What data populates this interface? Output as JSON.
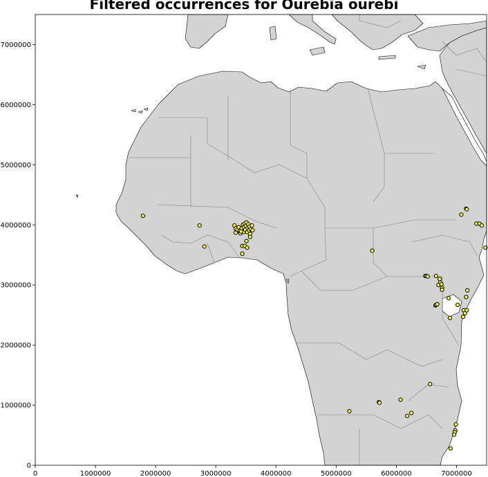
{
  "title": "Filtered occurrences for Ourebia ourebi",
  "colors": {
    "land": "#d3d3d3",
    "sea": "#ffffff",
    "border": "#808080",
    "coast": "#000000",
    "point_fill": "#ffff40",
    "point_edge": "#000000"
  },
  "chart_data": {
    "type": "scatter",
    "title": "Filtered occurrences for Ourebia ourebi",
    "xlabel": "",
    "ylabel": "",
    "xlim": [
      0,
      7500000
    ],
    "ylim": [
      0,
      7500000
    ],
    "x_ticks": [
      "0",
      "1000000",
      "2000000",
      "3000000",
      "4000000",
      "5000000",
      "6000000",
      "7000000"
    ],
    "y_ticks": [
      "0",
      "1000000",
      "2000000",
      "3000000",
      "4000000",
      "5000000",
      "6000000",
      "7000000"
    ],
    "grid": false,
    "points": [
      {
        "x": 1790000,
        "y": 4150000
      },
      {
        "x": 2730000,
        "y": 3990000
      },
      {
        "x": 2810000,
        "y": 3640000
      },
      {
        "x": 3310000,
        "y": 3990000
      },
      {
        "x": 3330000,
        "y": 3940000
      },
      {
        "x": 3340000,
        "y": 3880000
      },
      {
        "x": 3360000,
        "y": 3920000
      },
      {
        "x": 3380000,
        "y": 3960000
      },
      {
        "x": 3400000,
        "y": 3900000
      },
      {
        "x": 3410000,
        "y": 3860000
      },
      {
        "x": 3430000,
        "y": 3940000
      },
      {
        "x": 3450000,
        "y": 4000000
      },
      {
        "x": 3460000,
        "y": 3880000
      },
      {
        "x": 3470000,
        "y": 3960000
      },
      {
        "x": 3480000,
        "y": 4020000
      },
      {
        "x": 3490000,
        "y": 3920000
      },
      {
        "x": 3500000,
        "y": 3980000
      },
      {
        "x": 3510000,
        "y": 4040000
      },
      {
        "x": 3520000,
        "y": 3880000
      },
      {
        "x": 3530000,
        "y": 3950000
      },
      {
        "x": 3540000,
        "y": 4010000
      },
      {
        "x": 3550000,
        "y": 3910000
      },
      {
        "x": 3560000,
        "y": 3970000
      },
      {
        "x": 3570000,
        "y": 3850000
      },
      {
        "x": 3580000,
        "y": 3930000
      },
      {
        "x": 3600000,
        "y": 3990000
      },
      {
        "x": 3610000,
        "y": 3910000
      },
      {
        "x": 3570000,
        "y": 3800000
      },
      {
        "x": 3510000,
        "y": 3730000
      },
      {
        "x": 3440000,
        "y": 3650000
      },
      {
        "x": 3480000,
        "y": 3650000
      },
      {
        "x": 3520000,
        "y": 3620000
      },
      {
        "x": 3440000,
        "y": 3520000
      },
      {
        "x": 3330000,
        "y": 3870000
      },
      {
        "x": 3420000,
        "y": 3890000
      },
      {
        "x": 5600000,
        "y": 3570000
      },
      {
        "x": 6480000,
        "y": 3150000
      },
      {
        "x": 6500000,
        "y": 3150000
      },
      {
        "x": 6520000,
        "y": 3140000
      },
      {
        "x": 6660000,
        "y": 3150000
      },
      {
        "x": 6720000,
        "y": 3100000
      },
      {
        "x": 6730000,
        "y": 3040000
      },
      {
        "x": 6700000,
        "y": 3000000
      },
      {
        "x": 6750000,
        "y": 3010000
      },
      {
        "x": 6760000,
        "y": 2950000
      },
      {
        "x": 6760000,
        "y": 2920000
      },
      {
        "x": 6870000,
        "y": 2780000
      },
      {
        "x": 6650000,
        "y": 2660000
      },
      {
        "x": 6660000,
        "y": 2670000
      },
      {
        "x": 6680000,
        "y": 2680000
      },
      {
        "x": 6890000,
        "y": 2450000
      },
      {
        "x": 7020000,
        "y": 2670000
      },
      {
        "x": 7120000,
        "y": 2580000
      },
      {
        "x": 7140000,
        "y": 2530000
      },
      {
        "x": 7170000,
        "y": 2580000
      },
      {
        "x": 7110000,
        "y": 2470000
      },
      {
        "x": 7160000,
        "y": 2800000
      },
      {
        "x": 7180000,
        "y": 2910000
      },
      {
        "x": 7160000,
        "y": 4270000
      },
      {
        "x": 7170000,
        "y": 4260000
      },
      {
        "x": 7080000,
        "y": 4170000
      },
      {
        "x": 7330000,
        "y": 4020000
      },
      {
        "x": 7380000,
        "y": 4020000
      },
      {
        "x": 7420000,
        "y": 3990000
      },
      {
        "x": 7480000,
        "y": 3620000
      },
      {
        "x": 6560000,
        "y": 1350000
      },
      {
        "x": 6070000,
        "y": 1090000
      },
      {
        "x": 5710000,
        "y": 1050000
      },
      {
        "x": 5720000,
        "y": 1040000
      },
      {
        "x": 5220000,
        "y": 900000
      },
      {
        "x": 6250000,
        "y": 870000
      },
      {
        "x": 6180000,
        "y": 820000
      },
      {
        "x": 6990000,
        "y": 680000
      },
      {
        "x": 6980000,
        "y": 580000
      },
      {
        "x": 6970000,
        "y": 550000
      },
      {
        "x": 6960000,
        "y": 510000
      },
      {
        "x": 6900000,
        "y": 280000
      }
    ]
  }
}
